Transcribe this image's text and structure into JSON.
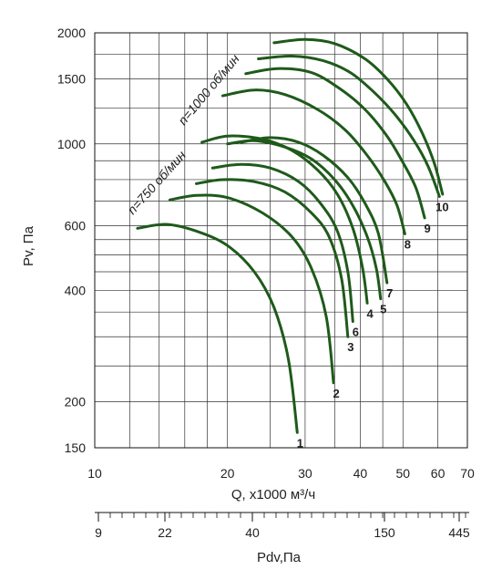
{
  "chart_data": {
    "type": "line",
    "x_scale": "log",
    "y_scale": "log",
    "xlabel": "Q, x1000 м³/ч",
    "ylabel": "Pv, Па",
    "xlim": [
      10,
      70
    ],
    "ylim": [
      150,
      2000
    ],
    "x_ticks": [
      10,
      20,
      30,
      40,
      50,
      60,
      70
    ],
    "y_ticks": [
      150,
      200,
      400,
      600,
      1000,
      1500,
      2000
    ],
    "grid": true,
    "secondary_axis": {
      "label": "Pdv,Па",
      "ticks": [
        "9",
        "22",
        "40",
        "150",
        "445"
      ]
    },
    "annotations": [
      "n=750 об/мин",
      "n=1000 об/мин"
    ],
    "series": [
      {
        "name": "1",
        "points": [
          [
            12.5,
            590
          ],
          [
            14.5,
            605
          ],
          [
            17,
            580
          ],
          [
            20,
            530
          ],
          [
            23,
            450
          ],
          [
            25.5,
            360
          ],
          [
            27.5,
            260
          ],
          [
            28.8,
            165
          ]
        ]
      },
      {
        "name": "2",
        "points": [
          [
            14.8,
            705
          ],
          [
            17,
            725
          ],
          [
            20,
            715
          ],
          [
            24,
            650
          ],
          [
            28,
            560
          ],
          [
            31,
            460
          ],
          [
            33.5,
            340
          ],
          [
            34.8,
            225
          ]
        ]
      },
      {
        "name": "3",
        "points": [
          [
            17,
            780
          ],
          [
            19.5,
            800
          ],
          [
            23,
            790
          ],
          [
            27,
            740
          ],
          [
            31,
            650
          ],
          [
            34,
            560
          ],
          [
            36.3,
            430
          ],
          [
            37.5,
            300
          ]
        ]
      },
      {
        "name": "6",
        "points": [
          [
            18.5,
            860
          ],
          [
            21.5,
            880
          ],
          [
            25,
            860
          ],
          [
            29,
            790
          ],
          [
            32.5,
            690
          ],
          [
            35.5,
            580
          ],
          [
            37.5,
            450
          ],
          [
            38.5,
            330
          ]
        ]
      },
      {
        "name": "4",
        "points": [
          [
            17.5,
            1010
          ],
          [
            20,
            1050
          ],
          [
            24,
            1030
          ],
          [
            28,
            960
          ],
          [
            32,
            850
          ],
          [
            35.5,
            730
          ],
          [
            38.5,
            590
          ],
          [
            40.5,
            460
          ],
          [
            41.5,
            370
          ]
        ]
      },
      {
        "name": "5",
        "points": [
          [
            20,
            1000
          ],
          [
            23,
            1020
          ],
          [
            27,
            980
          ],
          [
            31,
            910
          ],
          [
            35,
            800
          ],
          [
            38.5,
            680
          ],
          [
            41.5,
            560
          ],
          [
            43.5,
            460
          ],
          [
            44.5,
            380
          ]
        ]
      },
      {
        "name": "7",
        "points": [
          [
            21.5,
            1010
          ],
          [
            25,
            1040
          ],
          [
            29,
            1010
          ],
          [
            33,
            930
          ],
          [
            37.5,
            810
          ],
          [
            41,
            690
          ],
          [
            44,
            570
          ],
          [
            46,
            420
          ]
        ]
      },
      {
        "name": "8",
        "points": [
          [
            19.5,
            1350
          ],
          [
            23,
            1400
          ],
          [
            27,
            1360
          ],
          [
            32,
            1240
          ],
          [
            37,
            1090
          ],
          [
            41.5,
            930
          ],
          [
            45.5,
            790
          ],
          [
            48.5,
            680
          ],
          [
            50.5,
            570
          ]
        ]
      },
      {
        "name": "9",
        "points": [
          [
            22,
            1550
          ],
          [
            26,
            1600
          ],
          [
            31,
            1560
          ],
          [
            36,
            1410
          ],
          [
            41,
            1240
          ],
          [
            46,
            1050
          ],
          [
            50,
            890
          ],
          [
            53.5,
            760
          ],
          [
            56,
            630
          ]
        ]
      },
      {
        "name": "10",
        "points": [
          [
            23.5,
            1700
          ],
          [
            28,
            1730
          ],
          [
            33,
            1680
          ],
          [
            38,
            1560
          ],
          [
            43,
            1380
          ],
          [
            48,
            1200
          ],
          [
            53,
            1020
          ],
          [
            57,
            870
          ],
          [
            60.5,
            720
          ]
        ]
      },
      {
        "name": "",
        "points": [
          [
            25.5,
            1880
          ],
          [
            30,
            1920
          ],
          [
            35,
            1870
          ],
          [
            41,
            1700
          ],
          [
            46,
            1500
          ],
          [
            51,
            1280
          ],
          [
            55.5,
            1060
          ],
          [
            59,
            880
          ],
          [
            61.5,
            730
          ]
        ]
      }
    ]
  }
}
